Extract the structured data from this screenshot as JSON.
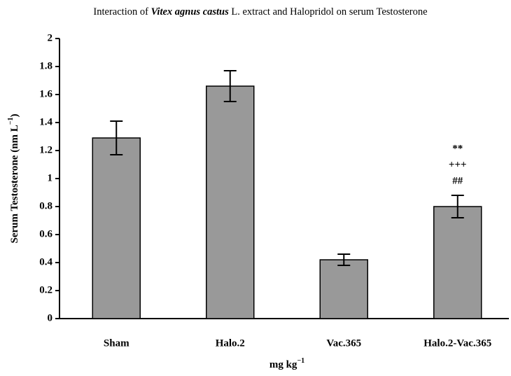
{
  "chart_data": {
    "type": "bar",
    "title": [
      "Interaction of ",
      "Vitex agnus castus",
      " L. extract and Halopridol on serum Testosterone"
    ],
    "ylabel": [
      "Serum Testosterone (nm L",
      "−1",
      ")"
    ],
    "xlabel": [
      "mg kg",
      "−1"
    ],
    "categories": [
      "Sham",
      "Halo.2",
      "Vac.365",
      "Halo.2-Vac.365"
    ],
    "values": [
      1.29,
      1.66,
      0.42,
      0.8
    ],
    "errors": [
      0.12,
      0.11,
      0.04,
      0.08
    ],
    "color": "#999999",
    "annotations": [
      "**",
      "+++",
      "##"
    ],
    "ylim": [
      0,
      2
    ],
    "yticks": [
      0,
      0.2,
      0.4,
      0.6,
      0.8,
      1,
      1.2,
      1.4,
      1.6,
      1.8,
      2
    ],
    "grid": false
  }
}
